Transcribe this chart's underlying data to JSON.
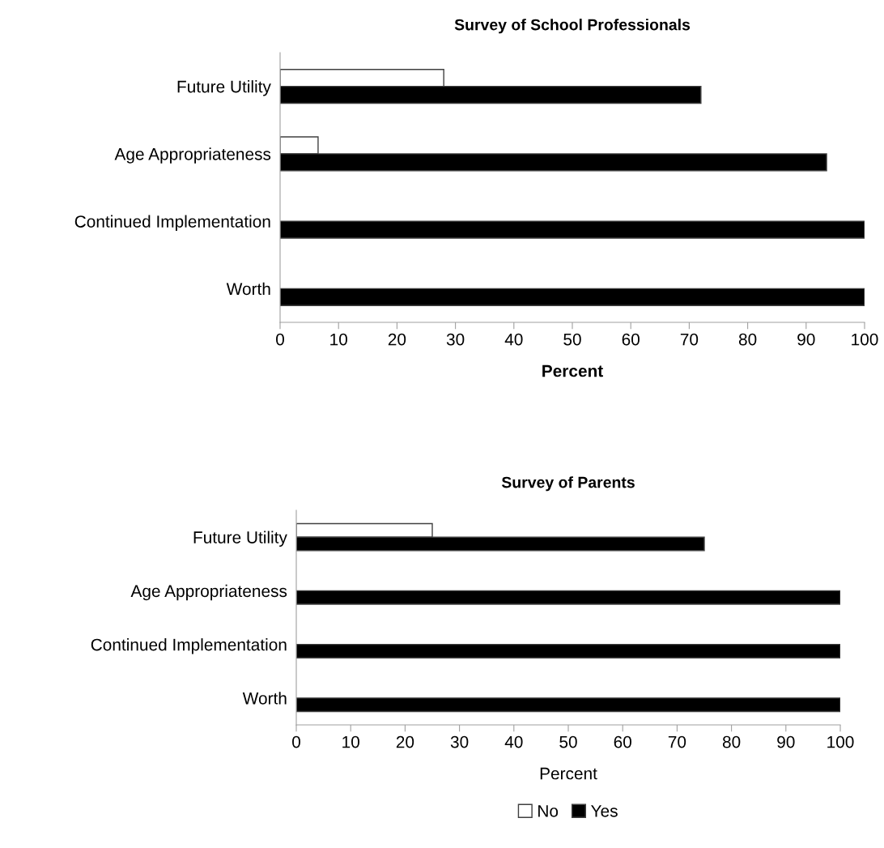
{
  "chart_data": [
    {
      "type": "bar",
      "orientation": "horizontal",
      "title": "Survey of School Professionals",
      "xlabel": "Percent",
      "categories": [
        "Future Utility",
        "Age Appropriateness",
        "Continued Implementation",
        "Worth"
      ],
      "series": [
        {
          "color": "#ffffff",
          "values": [
            28,
            6.5,
            null,
            null
          ]
        },
        {
          "color": "#000000",
          "values": [
            72,
            93.5,
            100,
            100
          ]
        }
      ],
      "xlim": [
        0,
        100
      ],
      "xticks": [
        0,
        10,
        20,
        30,
        40,
        50,
        60,
        70,
        80,
        90,
        100
      ],
      "grid": false
    },
    {
      "type": "bar",
      "orientation": "horizontal",
      "title": "Survey of Parents",
      "xlabel": "Percent",
      "categories": [
        "Future Utility",
        "Age Appropriateness",
        "Continued Implementation",
        "Worth"
      ],
      "series": [
        {
          "name": "No",
          "color": "#ffffff",
          "values": [
            25,
            null,
            null,
            null
          ]
        },
        {
          "name": "Yes",
          "color": "#000000",
          "values": [
            75,
            100,
            100,
            100
          ]
        }
      ],
      "xlim": [
        0,
        100
      ],
      "xticks": [
        0,
        10,
        20,
        30,
        40,
        50,
        60,
        70,
        80,
        90,
        100
      ],
      "grid": false,
      "legend": "bottom"
    }
  ]
}
